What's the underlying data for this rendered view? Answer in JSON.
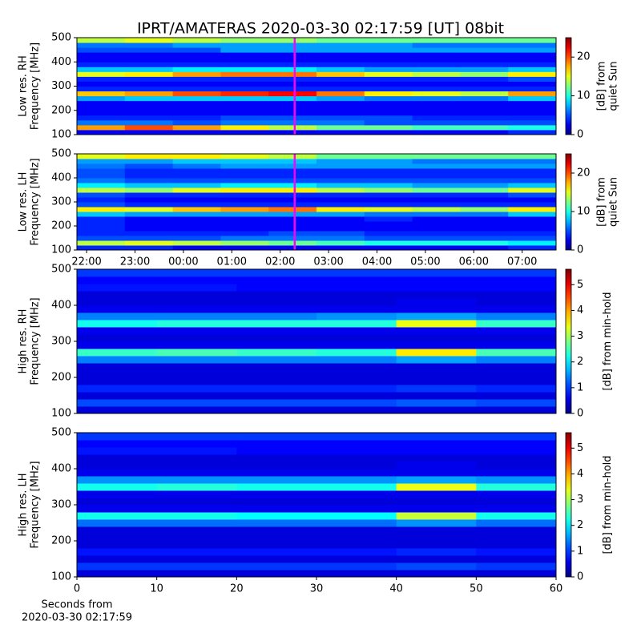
{
  "title": "IPRT/AMATERAS 2020-03-30 02:17:59 [UT]   08bit",
  "chart_data": [
    {
      "type": "heatmap",
      "ylabel": [
        "Low res. RH",
        "Frequency [MHz]"
      ],
      "xlim": [
        21.8,
        31.7
      ],
      "ylim": [
        100,
        500
      ],
      "yticks": [
        100,
        200,
        300,
        400,
        500
      ],
      "xbins": [
        21.8,
        22.79,
        23.78,
        24.77,
        25.76,
        26.75,
        27.74,
        28.73,
        29.72,
        30.71,
        31.7
      ],
      "ybins": [
        100,
        120,
        140,
        160,
        180,
        200,
        220,
        240,
        260,
        280,
        300,
        320,
        340,
        360,
        380,
        400,
        420,
        440,
        460,
        480,
        500
      ],
      "clim": [
        0,
        25
      ],
      "cticks": [
        0,
        10,
        20
      ],
      "colorbar_label": [
        "[dB] from",
        "quiet Sun"
      ],
      "colormap": "jet",
      "marker_x": 26.3,
      "marker_color": "#ff00ff",
      "values": [
        [
          3,
          3,
          3,
          3,
          3,
          3,
          3,
          3,
          3,
          4
        ],
        [
          18,
          20,
          18,
          16,
          14,
          12,
          12,
          11,
          11,
          10
        ],
        [
          6,
          6,
          5,
          6,
          6,
          6,
          5,
          5,
          5,
          5
        ],
        [
          4,
          4,
          4,
          5,
          5,
          5,
          5,
          4,
          4,
          4
        ],
        [
          3,
          3,
          3,
          3,
          3,
          3,
          3,
          3,
          3,
          3
        ],
        [
          3,
          3,
          3,
          3,
          3,
          3,
          3,
          3,
          3,
          3
        ],
        [
          3,
          3,
          3,
          3,
          3,
          3,
          3,
          3,
          3,
          3
        ],
        [
          7,
          8,
          8,
          8,
          8,
          7,
          6,
          6,
          6,
          8
        ],
        [
          17,
          18,
          20,
          21,
          22,
          19,
          16,
          15,
          14,
          18
        ],
        [
          4,
          4,
          4,
          4,
          4,
          4,
          4,
          4,
          4,
          4
        ],
        [
          3,
          3,
          3,
          3,
          3,
          3,
          3,
          3,
          3,
          3
        ],
        [
          4,
          4,
          4,
          4,
          4,
          4,
          4,
          4,
          4,
          5
        ],
        [
          15,
          16,
          18,
          19,
          19,
          17,
          15,
          14,
          13,
          16
        ],
        [
          8,
          8,
          9,
          9,
          9,
          8,
          7,
          7,
          7,
          8
        ],
        [
          4,
          4,
          4,
          4,
          4,
          4,
          4,
          4,
          4,
          4
        ],
        [
          3,
          3,
          3,
          3,
          3,
          3,
          3,
          3,
          3,
          3
        ],
        [
          3,
          3,
          3,
          3,
          3,
          3,
          3,
          3,
          3,
          3
        ],
        [
          5,
          5,
          5,
          7,
          7,
          7,
          7,
          7,
          7,
          7
        ],
        [
          6,
          6,
          7,
          7,
          7,
          7,
          7,
          6,
          6,
          6
        ],
        [
          14,
          15,
          14,
          13,
          13,
          12,
          12,
          12,
          12,
          12
        ]
      ]
    },
    {
      "type": "heatmap",
      "ylabel": [
        "Low res. LH",
        "Frequency [MHz]"
      ],
      "xlim": [
        21.8,
        31.7
      ],
      "ylim": [
        100,
        500
      ],
      "yticks": [
        100,
        200,
        300,
        400,
        500
      ],
      "xticks": [
        {
          "value": 22,
          "label": "22:00"
        },
        {
          "value": 23,
          "label": "23:00"
        },
        {
          "value": 24,
          "label": "00:00"
        },
        {
          "value": 25,
          "label": "01:00"
        },
        {
          "value": 26,
          "label": "02:00"
        },
        {
          "value": 27,
          "label": "03:00"
        },
        {
          "value": 28,
          "label": "04:00"
        },
        {
          "value": 29,
          "label": "05:00"
        },
        {
          "value": 30,
          "label": "06:00"
        },
        {
          "value": 31,
          "label": "07:00"
        }
      ],
      "xbins": [
        21.8,
        22.79,
        23.78,
        24.77,
        25.76,
        26.75,
        27.74,
        28.73,
        29.72,
        30.71,
        31.7
      ],
      "ybins": [
        100,
        120,
        140,
        160,
        180,
        200,
        220,
        240,
        260,
        280,
        300,
        320,
        340,
        360,
        380,
        400,
        420,
        440,
        460,
        480,
        500
      ],
      "clim": [
        0,
        25
      ],
      "cticks": [
        0,
        10,
        20
      ],
      "colorbar_label": [
        "[dB] from",
        "quiet Sun"
      ],
      "colormap": "jet",
      "marker_x": 26.3,
      "marker_color": "#ff00ff",
      "values": [
        [
          4,
          4,
          3,
          3,
          3,
          3,
          3,
          3,
          3,
          4
        ],
        [
          14,
          15,
          14,
          13,
          12,
          11,
          10,
          10,
          10,
          9
        ],
        [
          5,
          5,
          5,
          6,
          6,
          6,
          5,
          5,
          5,
          5
        ],
        [
          4,
          4,
          4,
          4,
          5,
          5,
          4,
          4,
          4,
          4
        ],
        [
          4,
          3,
          3,
          3,
          3,
          3,
          3,
          3,
          3,
          3
        ],
        [
          4,
          3,
          3,
          3,
          3,
          3,
          3,
          3,
          3,
          3
        ],
        [
          4,
          3,
          3,
          3,
          3,
          3,
          4,
          3,
          3,
          3
        ],
        [
          8,
          7,
          7,
          7,
          7,
          7,
          6,
          6,
          6,
          8
        ],
        [
          16,
          15,
          17,
          18,
          19,
          16,
          15,
          14,
          13,
          16
        ],
        [
          5,
          4,
          4,
          4,
          4,
          4,
          4,
          4,
          4,
          4
        ],
        [
          4,
          3,
          3,
          3,
          3,
          3,
          3,
          3,
          3,
          3
        ],
        [
          5,
          4,
          4,
          4,
          4,
          4,
          4,
          4,
          4,
          5
        ],
        [
          14,
          13,
          15,
          16,
          16,
          14,
          13,
          12,
          12,
          15
        ],
        [
          9,
          8,
          8,
          9,
          9,
          8,
          8,
          7,
          7,
          8
        ],
        [
          6,
          5,
          5,
          5,
          5,
          5,
          5,
          5,
          5,
          5
        ],
        [
          5,
          4,
          4,
          4,
          4,
          4,
          4,
          4,
          4,
          4
        ],
        [
          5,
          4,
          4,
          4,
          4,
          4,
          4,
          4,
          4,
          4
        ],
        [
          6,
          5,
          6,
          7,
          7,
          7,
          7,
          7,
          7,
          7
        ],
        [
          7,
          7,
          8,
          8,
          8,
          7,
          7,
          6,
          6,
          6
        ],
        [
          15,
          16,
          16,
          15,
          14,
          12,
          12,
          12,
          12,
          12
        ]
      ]
    },
    {
      "type": "heatmap",
      "ylabel": [
        "High res. RH",
        "Frequency [MHz]"
      ],
      "xlim": [
        0,
        60
      ],
      "ylim": [
        100,
        500
      ],
      "yticks": [
        100,
        200,
        300,
        400,
        500
      ],
      "xbins": [
        0,
        10,
        20,
        30,
        40,
        50,
        60
      ],
      "ybins": [
        100,
        120,
        140,
        160,
        180,
        200,
        220,
        240,
        260,
        280,
        300,
        320,
        340,
        360,
        380,
        400,
        420,
        440,
        460,
        480,
        500
      ],
      "clim": [
        0,
        5.6
      ],
      "cticks": [
        0,
        1,
        2,
        3,
        4,
        5
      ],
      "colorbar_label": [
        "[dB] from min-hold"
      ],
      "colormap": "jet",
      "values": [
        [
          0.5,
          0.5,
          0.5,
          0.5,
          0.5,
          0.5
        ],
        [
          1.1,
          1.1,
          1.1,
          1.1,
          1.2,
          1.1
        ],
        [
          0.5,
          0.5,
          0.5,
          0.5,
          0.5,
          0.5
        ],
        [
          0.9,
          0.9,
          0.9,
          0.9,
          1.0,
          0.9
        ],
        [
          0.5,
          0.5,
          0.5,
          0.5,
          0.5,
          0.5
        ],
        [
          0.5,
          0.5,
          0.5,
          0.5,
          0.5,
          0.5
        ],
        [
          0.5,
          0.5,
          0.5,
          0.5,
          0.5,
          0.5
        ],
        [
          1.4,
          1.4,
          1.4,
          1.4,
          1.6,
          1.4
        ],
        [
          2.4,
          2.5,
          2.4,
          2.3,
          3.6,
          2.5
        ],
        [
          0.6,
          0.6,
          0.6,
          0.6,
          0.6,
          0.6
        ],
        [
          0.5,
          0.5,
          0.5,
          0.5,
          0.5,
          0.5
        ],
        [
          0.6,
          0.6,
          0.6,
          0.6,
          0.6,
          0.6
        ],
        [
          2.2,
          2.3,
          2.3,
          2.3,
          3.4,
          2.4
        ],
        [
          1.4,
          1.4,
          1.4,
          1.5,
          1.6,
          1.4
        ],
        [
          0.6,
          0.6,
          0.6,
          0.6,
          0.6,
          0.6
        ],
        [
          0.5,
          0.5,
          0.5,
          0.5,
          0.6,
          0.5
        ],
        [
          0.5,
          0.5,
          0.5,
          0.5,
          0.5,
          0.5
        ],
        [
          0.8,
          0.8,
          0.7,
          0.7,
          0.7,
          0.7
        ],
        [
          0.7,
          0.7,
          0.7,
          0.7,
          0.7,
          0.7
        ],
        [
          1.0,
          1.0,
          1.0,
          1.0,
          1.0,
          1.0
        ]
      ]
    },
    {
      "type": "heatmap",
      "ylabel": [
        "High res. LH",
        "Frequency [MHz]"
      ],
      "xlabel": [
        "Seconds from",
        "2020-03-30 02:17:59"
      ],
      "xlim": [
        0,
        60
      ],
      "ylim": [
        100,
        500
      ],
      "yticks": [
        100,
        200,
        300,
        400,
        500
      ],
      "xticks": [
        0,
        10,
        20,
        30,
        40,
        50,
        60
      ],
      "xbins": [
        0,
        10,
        20,
        30,
        40,
        50,
        60
      ],
      "ybins": [
        100,
        120,
        140,
        160,
        180,
        200,
        220,
        240,
        260,
        280,
        300,
        320,
        340,
        360,
        380,
        400,
        420,
        440,
        460,
        480,
        500
      ],
      "clim": [
        0,
        5.6
      ],
      "cticks": [
        0,
        1,
        2,
        3,
        4,
        5
      ],
      "colorbar_label": [
        "[dB] from min-hold"
      ],
      "colormap": "jet",
      "values": [
        [
          0.5,
          0.5,
          0.5,
          0.5,
          0.5,
          0.5
        ],
        [
          1.0,
          1.0,
          1.0,
          1.0,
          1.1,
          1.0
        ],
        [
          0.5,
          0.5,
          0.5,
          0.5,
          0.5,
          0.5
        ],
        [
          0.8,
          0.8,
          0.8,
          0.8,
          0.9,
          0.8
        ],
        [
          0.5,
          0.5,
          0.5,
          0.5,
          0.5,
          0.5
        ],
        [
          0.5,
          0.5,
          0.5,
          0.5,
          0.5,
          0.5
        ],
        [
          0.5,
          0.5,
          0.5,
          0.5,
          0.5,
          0.5
        ],
        [
          1.3,
          1.3,
          1.3,
          1.3,
          1.5,
          1.3
        ],
        [
          2.2,
          2.2,
          2.1,
          2.1,
          3.2,
          2.2
        ],
        [
          0.6,
          0.6,
          0.6,
          0.6,
          0.6,
          0.6
        ],
        [
          0.5,
          0.5,
          0.5,
          0.5,
          0.5,
          0.5
        ],
        [
          0.6,
          0.6,
          0.6,
          0.6,
          0.6,
          0.6
        ],
        [
          2.2,
          2.3,
          2.2,
          2.2,
          3.4,
          2.3
        ],
        [
          1.5,
          1.5,
          1.5,
          1.5,
          1.6,
          1.5
        ],
        [
          0.6,
          0.6,
          0.6,
          0.6,
          0.6,
          0.6
        ],
        [
          0.5,
          0.5,
          0.5,
          0.5,
          0.6,
          0.5
        ],
        [
          0.5,
          0.5,
          0.5,
          0.5,
          0.5,
          0.5
        ],
        [
          0.8,
          0.8,
          0.7,
          0.7,
          0.7,
          0.7
        ],
        [
          0.7,
          0.7,
          0.7,
          0.7,
          0.7,
          0.7
        ],
        [
          1.0,
          1.0,
          1.0,
          1.0,
          1.0,
          1.0
        ]
      ]
    }
  ]
}
